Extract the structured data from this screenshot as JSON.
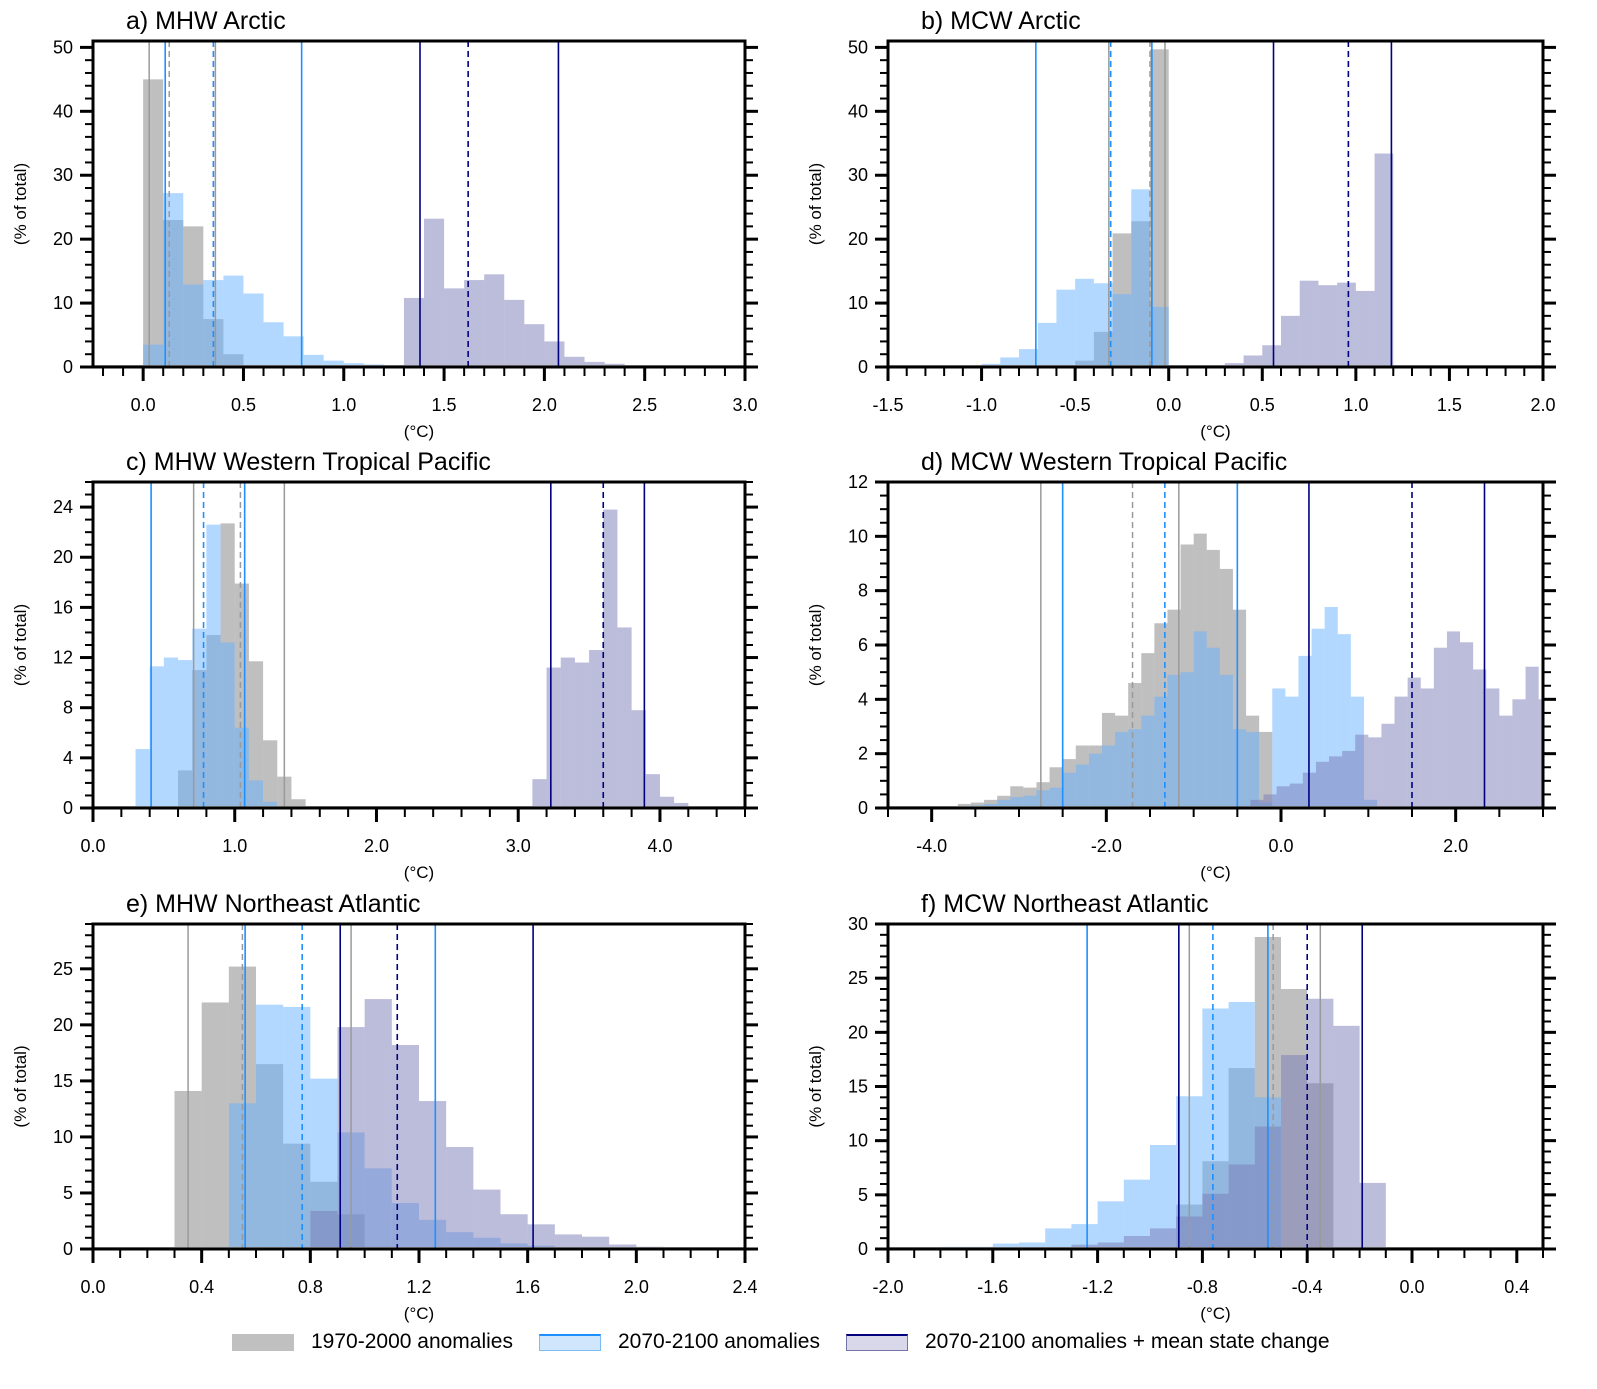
{
  "legend": {
    "items": [
      {
        "label": "1970-2000 anomalies",
        "fill": "#c0c0c0",
        "line": "#a8a8a8"
      },
      {
        "label": "2070-2100 anomalies",
        "fill": "#cfe6fd",
        "line": "#1e90ff"
      },
      {
        "label": "2070-2100 anomalies + mean state change",
        "fill": "#d8d8ea",
        "line": "#000080"
      }
    ]
  },
  "colors": {
    "present": "#808080",
    "future": "#66b2ff",
    "future_mean": "#7a7ab8",
    "present_line": "#9a9a9a",
    "future_line": "#1e90ff",
    "future_mean_line": "#000080"
  },
  "chart_data": [
    {
      "type": "bar",
      "title": "a) MHW Arctic",
      "xlabel": "(°C)",
      "ylabel": "(% of total)",
      "xlim": [
        -0.25,
        3.0
      ],
      "ylim": [
        0,
        51
      ],
      "xticks": [
        0.0,
        0.5,
        1.0,
        1.5,
        2.0,
        2.5,
        3.0
      ],
      "xtick_labels": [
        "0.0",
        "0.5",
        "1.0",
        "1.5",
        "2.0",
        "2.5",
        "3.0"
      ],
      "xminor": 0.1,
      "yticks": [
        0,
        10,
        20,
        30,
        40,
        50
      ],
      "yminor": 2,
      "bin_width": 0.1,
      "series": [
        {
          "name": "1970-2000 anomalies",
          "key": "present",
          "x0": 0.0,
          "values": [
            45,
            23,
            22,
            7.5,
            2,
            0
          ]
        },
        {
          "name": "2070-2100 anomalies",
          "key": "future",
          "x0": 0.0,
          "values": [
            3.5,
            27.2,
            12.9,
            13.6,
            14.3,
            11.5,
            7.0,
            4.8,
            1.9,
            1.0,
            0.6,
            0.4
          ]
        },
        {
          "name": "2070-2100 anomalies + mean state change",
          "key": "future_mean",
          "x0": 1.3,
          "values": [
            10.8,
            23.2,
            12.3,
            13.6,
            14.5,
            10.5,
            6.7,
            4.0,
            1.6,
            0.8,
            0.5,
            0.3
          ]
        }
      ],
      "vlines": [
        {
          "series": "present",
          "style": "solid",
          "x": 0.03
        },
        {
          "series": "present",
          "style": "dashed",
          "x": 0.13
        },
        {
          "series": "present",
          "style": "solid",
          "x": 0.36
        },
        {
          "series": "future",
          "style": "solid",
          "x": 0.11
        },
        {
          "series": "future",
          "style": "dashed",
          "x": 0.35
        },
        {
          "series": "future",
          "style": "solid",
          "x": 0.79
        },
        {
          "series": "future_mean",
          "style": "solid",
          "x": 1.38
        },
        {
          "series": "future_mean",
          "style": "dashed",
          "x": 1.62
        },
        {
          "series": "future_mean",
          "style": "solid",
          "x": 2.07
        }
      ]
    },
    {
      "type": "bar",
      "title": "b) MCW Arctic",
      "xlabel": "(°C)",
      "ylabel": "(% of total)",
      "xlim": [
        -1.5,
        2.0
      ],
      "ylim": [
        0,
        51
      ],
      "xticks": [
        -1.5,
        -1.0,
        -0.5,
        0.0,
        0.5,
        1.0,
        1.5,
        2.0
      ],
      "xtick_labels": [
        "-1.5",
        "-1.0",
        "-0.5",
        "0.0",
        "0.5",
        "1.0",
        "1.5",
        "2.0"
      ],
      "xminor": 0.1,
      "yticks": [
        0,
        10,
        20,
        30,
        40,
        50
      ],
      "yminor": 2,
      "bin_width": 0.1,
      "series": [
        {
          "name": "1970-2000 anomalies",
          "key": "present",
          "x0": -0.5,
          "values": [
            1.0,
            5.5,
            20.9,
            22.8,
            49.7
          ]
        },
        {
          "name": "2070-2100 anomalies",
          "key": "future",
          "x0": -1.0,
          "values": [
            0.5,
            1.5,
            2.8,
            6.9,
            12.1,
            13.8,
            13.1,
            11.4,
            27.8,
            9.4
          ]
        },
        {
          "name": "2070-2100 anomalies + mean state change",
          "key": "future_mean",
          "x0": 0.2,
          "values": [
            0.2,
            0.6,
            1.8,
            3.4,
            8.0,
            13.5,
            12.8,
            13.2,
            11.9,
            33.4
          ]
        }
      ],
      "vlines": [
        {
          "series": "present",
          "style": "solid",
          "x": -0.32
        },
        {
          "series": "present",
          "style": "dashed",
          "x": -0.1
        },
        {
          "series": "present",
          "style": "solid",
          "x": -0.02
        },
        {
          "series": "future",
          "style": "solid",
          "x": -0.71
        },
        {
          "series": "future",
          "style": "dashed",
          "x": -0.31
        },
        {
          "series": "future",
          "style": "solid",
          "x": -0.09
        },
        {
          "series": "future_mean",
          "style": "solid",
          "x": 0.56
        },
        {
          "series": "future_mean",
          "style": "dashed",
          "x": 0.96
        },
        {
          "series": "future_mean",
          "style": "solid",
          "x": 1.19
        }
      ]
    },
    {
      "type": "bar",
      "title": "c) MHW Western Tropical Pacific",
      "xlabel": "(°C)",
      "ylabel": "(% of total)",
      "xlim": [
        0.0,
        4.6
      ],
      "ylim": [
        0,
        26
      ],
      "xticks": [
        0.0,
        1.0,
        2.0,
        3.0,
        4.0
      ],
      "xtick_labels": [
        "0.0",
        "1.0",
        "2.0",
        "3.0",
        "4.0"
      ],
      "xminor": 0.2,
      "yticks": [
        0,
        4,
        8,
        12,
        16,
        20,
        24
      ],
      "yminor": 1,
      "bin_width": 0.1,
      "series": [
        {
          "name": "1970-2000 anomalies",
          "key": "present",
          "x0": 0.6,
          "values": [
            3.0,
            11.0,
            13.8,
            22.7,
            17.9,
            11.7,
            5.4,
            2.5,
            0.7
          ]
        },
        {
          "name": "2070-2100 anomalies",
          "key": "future",
          "x0": 0.3,
          "values": [
            4.7,
            11.3,
            12.0,
            11.8,
            14.3,
            22.6,
            13.2,
            6.4,
            2.2,
            0.5
          ]
        },
        {
          "name": "2070-2100 anomalies + mean state change",
          "key": "future_mean",
          "x0": 3.1,
          "values": [
            2.3,
            11.2,
            12.0,
            11.6,
            12.6,
            23.8,
            14.4,
            7.8,
            2.7,
            0.9,
            0.4,
            0.1
          ]
        }
      ],
      "vlines": [
        {
          "series": "present",
          "style": "solid",
          "x": 0.71
        },
        {
          "series": "present",
          "style": "dashed",
          "x": 1.04
        },
        {
          "series": "present",
          "style": "solid",
          "x": 1.35
        },
        {
          "series": "future",
          "style": "solid",
          "x": 0.41
        },
        {
          "series": "future",
          "style": "dashed",
          "x": 0.78
        },
        {
          "series": "future",
          "style": "solid",
          "x": 1.07
        },
        {
          "series": "future_mean",
          "style": "solid",
          "x": 3.23
        },
        {
          "series": "future_mean",
          "style": "dashed",
          "x": 3.6
        },
        {
          "series": "future_mean",
          "style": "solid",
          "x": 3.89
        }
      ]
    },
    {
      "type": "bar",
      "title": "d) MCW Western Tropical Pacific",
      "xlabel": "(°C)",
      "ylabel": "(% of total)",
      "xlim": [
        -4.5,
        3.0
      ],
      "ylim": [
        0,
        12
      ],
      "xticks": [
        -4.0,
        -2.0,
        0.0,
        2.0
      ],
      "xtick_labels": [
        "-4.0",
        "-2.0",
        "0.0",
        "2.0"
      ],
      "xminor": 0.5,
      "yticks": [
        0,
        2,
        4,
        6,
        8,
        10,
        12
      ],
      "yminor": 0.5,
      "bin_width": 0.15,
      "series": [
        {
          "name": "1970-2000 anomalies",
          "key": "present",
          "x0": -3.7,
          "values": [
            0.15,
            0.2,
            0.3,
            0.45,
            0.8,
            0.75,
            0.95,
            1.5,
            1.8,
            2.3,
            2.3,
            3.5,
            3.4,
            4.6,
            5.7,
            6.8,
            7.3,
            9.7,
            10.1,
            9.5,
            8.8,
            7.3,
            3.4,
            2.8
          ]
        },
        {
          "name": "2070-2100 anomalies",
          "key": "future",
          "x0": -3.7,
          "values": [
            0.05,
            0.1,
            0.15,
            0.3,
            0.4,
            0.45,
            0.65,
            0.75,
            1.3,
            1.6,
            2.0,
            2.3,
            2.8,
            2.9,
            3.4,
            4.1,
            4.9,
            5.0,
            6.5,
            5.9,
            4.9,
            2.9,
            2.8,
            0.2,
            4.4,
            4.1,
            5.6,
            6.6,
            7.4,
            6.4,
            4.1,
            0.3
          ]
        },
        {
          "name": "2070-2100 anomalies + mean state change",
          "key": "future_mean",
          "x0": -0.35,
          "values": [
            0.3,
            0.5,
            0.8,
            0.9,
            1.3,
            1.7,
            1.9,
            2.1,
            2.7,
            2.6,
            3.1,
            4.1,
            4.8,
            4.4,
            5.9,
            6.5,
            6.1,
            5.1,
            4.4,
            3.4,
            4.0,
            5.2,
            4.0,
            4.7,
            5.5,
            7.5,
            6.6,
            4.7,
            2.4
          ]
        }
      ],
      "vlines": [
        {
          "series": "present",
          "style": "solid",
          "x": -2.75
        },
        {
          "series": "present",
          "style": "dashed",
          "x": -1.7
        },
        {
          "series": "present",
          "style": "solid",
          "x": -1.17
        },
        {
          "series": "future",
          "style": "solid",
          "x": -2.5
        },
        {
          "series": "future",
          "style": "dashed",
          "x": -1.33
        },
        {
          "series": "future",
          "style": "solid",
          "x": -0.5
        },
        {
          "series": "future_mean",
          "style": "solid",
          "x": 0.32
        },
        {
          "series": "future_mean",
          "style": "dashed",
          "x": 1.5
        },
        {
          "series": "future_mean",
          "style": "solid",
          "x": 2.33
        }
      ]
    },
    {
      "type": "bar",
      "title": "e) MHW Northeast Atlantic",
      "xlabel": "(°C)",
      "ylabel": "(% of total)",
      "xlim": [
        0.0,
        2.4
      ],
      "ylim": [
        0,
        29
      ],
      "xticks": [
        0.0,
        0.4,
        0.8,
        1.2,
        1.6,
        2.0,
        2.4
      ],
      "xtick_labels": [
        "0.0",
        "0.4",
        "0.8",
        "1.2",
        "1.6",
        "2.0",
        "2.4"
      ],
      "xminor": 0.1,
      "yticks": [
        0,
        5,
        10,
        15,
        20,
        25
      ],
      "yminor": 1,
      "bin_width": 0.1,
      "series": [
        {
          "name": "1970-2000 anomalies",
          "key": "present",
          "x0": 0.3,
          "values": [
            14.1,
            22.0,
            25.2,
            16.5,
            9.4,
            6.0,
            3.1,
            0.2
          ]
        },
        {
          "name": "2070-2100 anomalies",
          "key": "future",
          "x0": 0.5,
          "values": [
            13.0,
            21.8,
            21.6,
            15.2,
            10.4,
            7.2,
            4.1,
            2.6,
            1.5,
            1.0,
            0.5,
            0.3,
            0.1
          ]
        },
        {
          "name": "2070-2100 anomalies + mean state change",
          "key": "future_mean",
          "x0": 0.8,
          "values": [
            3.4,
            19.8,
            22.3,
            18.2,
            13.2,
            9.1,
            5.3,
            3.1,
            2.2,
            1.3,
            1.1,
            0.4,
            0.2,
            0.1,
            0.05
          ]
        }
      ],
      "vlines": [
        {
          "series": "present",
          "style": "solid",
          "x": 0.35
        },
        {
          "series": "present",
          "style": "dashed",
          "x": 0.55
        },
        {
          "series": "present",
          "style": "solid",
          "x": 0.95
        },
        {
          "series": "future",
          "style": "solid",
          "x": 0.56
        },
        {
          "series": "future",
          "style": "dashed",
          "x": 0.77
        },
        {
          "series": "future",
          "style": "solid",
          "x": 1.26
        },
        {
          "series": "future_mean",
          "style": "solid",
          "x": 0.91
        },
        {
          "series": "future_mean",
          "style": "dashed",
          "x": 1.12
        },
        {
          "series": "future_mean",
          "style": "solid",
          "x": 1.62
        }
      ]
    },
    {
      "type": "bar",
      "title": "f) MCW Northeast Atlantic",
      "xlabel": "(°C)",
      "ylabel": "(% of total)",
      "xlim": [
        -2.0,
        0.5
      ],
      "ylim": [
        0,
        30
      ],
      "xticks": [
        -2.0,
        -1.6,
        -1.2,
        -0.8,
        -0.4,
        0.0,
        0.4
      ],
      "xtick_labels": [
        "-2.0",
        "-1.6",
        "-1.2",
        "-0.8",
        "-0.4",
        "0.0",
        "0.4"
      ],
      "xminor": 0.1,
      "yticks": [
        0,
        5,
        10,
        15,
        20,
        25,
        30
      ],
      "yminor": 1,
      "bin_width": 0.1,
      "series": [
        {
          "name": "1970-2000 anomalies",
          "key": "present",
          "x0": -0.9,
          "values": [
            4.1,
            8.1,
            16.7,
            28.8,
            24.0,
            15.3
          ]
        },
        {
          "name": "2070-2100 anomalies",
          "key": "future",
          "x0": -1.9,
          "values": [
            0.1,
            0.2,
            0.2,
            0.5,
            0.6,
            1.9,
            2.3,
            4.4,
            6.4,
            9.6,
            14.1,
            22.2,
            22.8,
            14.0,
            0.0
          ]
        },
        {
          "name": "2070-2100 anomalies + mean state change",
          "key": "future_mean",
          "x0": -1.3,
          "values": [
            0.4,
            0.6,
            1.2,
            1.9,
            3.0,
            5.1,
            7.8,
            11.3,
            17.9,
            23.1,
            20.6,
            6.1
          ]
        }
      ],
      "vlines": [
        {
          "series": "present",
          "style": "solid",
          "x": -0.85
        },
        {
          "series": "present",
          "style": "dashed",
          "x": -0.53
        },
        {
          "series": "present",
          "style": "solid",
          "x": -0.35
        },
        {
          "series": "future",
          "style": "solid",
          "x": -1.24
        },
        {
          "series": "future",
          "style": "dashed",
          "x": -0.76
        },
        {
          "series": "future",
          "style": "solid",
          "x": -0.55
        },
        {
          "series": "future_mean",
          "style": "solid",
          "x": -0.89
        },
        {
          "series": "future_mean",
          "style": "dashed",
          "x": -0.4
        },
        {
          "series": "future_mean",
          "style": "solid",
          "x": -0.19
        }
      ]
    }
  ]
}
